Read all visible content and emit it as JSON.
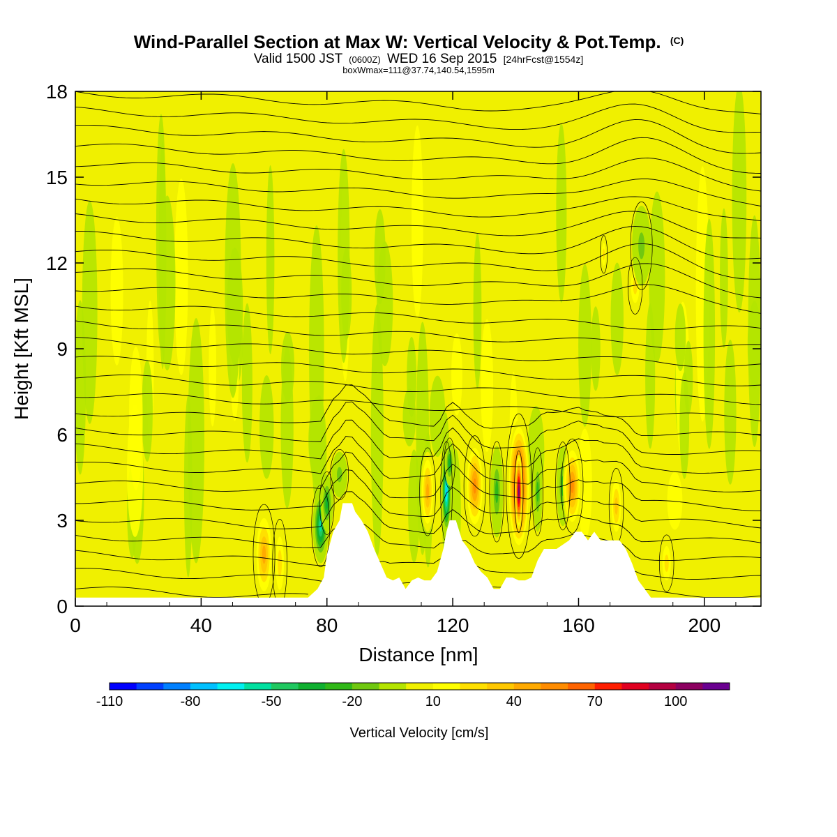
{
  "title": {
    "main": "Wind-Parallel Section at Max W: Vertical Velocity & Pot.Temp.",
    "main_mark": "(C)",
    "valid_prefix": "Valid 1500 JST",
    "valid_utc": "(0600Z)",
    "valid_date": "WED 16 Sep 2015",
    "valid_fcst": "[24hrFcst@1554z]",
    "box": "boxWmax=111@37.74,140.54,1595m"
  },
  "chart_data": {
    "type": "heatmap",
    "xlabel": "Distance [nm]",
    "ylabel": "Height [Kft MSL]",
    "xlim": [
      0,
      218
    ],
    "ylim": [
      0,
      18
    ],
    "x_ticks": [
      "0",
      "40",
      "80",
      "120",
      "160",
      "200"
    ],
    "y_ticks": [
      "0",
      "3",
      "6",
      "9",
      "12",
      "15",
      "18"
    ],
    "colorbar": {
      "label": "Vertical Velocity [cm/s]",
      "tick_labels": [
        "-110",
        "-80",
        "-50",
        "-20",
        "10",
        "40",
        "70",
        "100"
      ],
      "colors": [
        "#0000ff",
        "#0040ff",
        "#0080ff",
        "#00c0ff",
        "#00f0f0",
        "#00e0a0",
        "#20c860",
        "#10b030",
        "#30b818",
        "#70c810",
        "#b4e400",
        "#f0f000",
        "#ffff00",
        "#ffe000",
        "#ffc800",
        "#ffaa00",
        "#ff8c00",
        "#ff6400",
        "#ff1e00",
        "#e00020",
        "#b40040",
        "#8c0060",
        "#6a0090"
      ]
    },
    "terrain_kft": [
      [
        0,
        0.3
      ],
      [
        62,
        0.3
      ],
      [
        70,
        0.3
      ],
      [
        74,
        0.3
      ],
      [
        77,
        0.6
      ],
      [
        79,
        1.0
      ],
      [
        80,
        1.8
      ],
      [
        82,
        2.6
      ],
      [
        84,
        3.0
      ],
      [
        85,
        3.6
      ],
      [
        88,
        3.6
      ],
      [
        89,
        3.3
      ],
      [
        91,
        3.0
      ],
      [
        93,
        2.6
      ],
      [
        95,
        2.0
      ],
      [
        97,
        1.5
      ],
      [
        99,
        1.0
      ],
      [
        101,
        0.9
      ],
      [
        103,
        1.0
      ],
      [
        105,
        0.6
      ],
      [
        107,
        0.9
      ],
      [
        109,
        1.0
      ],
      [
        111,
        0.9
      ],
      [
        113,
        0.9
      ],
      [
        115,
        1.2
      ],
      [
        117,
        2.0
      ],
      [
        118,
        2.6
      ],
      [
        119,
        3.0
      ],
      [
        121,
        3.0
      ],
      [
        123,
        2.3
      ],
      [
        125,
        2.0
      ],
      [
        127,
        1.5
      ],
      [
        129,
        1.2
      ],
      [
        131,
        1.0
      ],
      [
        133,
        0.6
      ],
      [
        135,
        0.6
      ],
      [
        137,
        1.0
      ],
      [
        139,
        1.0
      ],
      [
        141,
        0.9
      ],
      [
        143,
        0.9
      ],
      [
        145,
        1.0
      ],
      [
        147,
        1.6
      ],
      [
        149,
        2.0
      ],
      [
        153,
        2.0
      ],
      [
        157,
        2.3
      ],
      [
        159,
        2.6
      ],
      [
        161,
        2.6
      ],
      [
        163,
        2.3
      ],
      [
        165,
        2.6
      ],
      [
        167,
        2.3
      ],
      [
        173,
        2.3
      ],
      [
        175,
        2.0
      ],
      [
        177,
        1.5
      ],
      [
        179,
        0.9
      ],
      [
        181,
        0.6
      ],
      [
        183,
        0.3
      ],
      [
        218,
        0.3
      ]
    ],
    "velocity_cells": [
      {
        "x": 60,
        "y": 1.8,
        "rx": 3,
        "ry": 1.6,
        "w": 35
      },
      {
        "x": 65,
        "y": 1.5,
        "rx": 2,
        "ry": 1.4,
        "w": 20
      },
      {
        "x": 78,
        "y": 2.8,
        "rx": 2.5,
        "ry": 1.3,
        "w": -55
      },
      {
        "x": 80,
        "y": 3.6,
        "rx": 2,
        "ry": 1.0,
        "w": -35
      },
      {
        "x": 84,
        "y": 4.6,
        "rx": 2.5,
        "ry": 0.8,
        "w": -20
      },
      {
        "x": 112,
        "y": 4.0,
        "rx": 2.2,
        "ry": 1.4,
        "w": 40
      },
      {
        "x": 118,
        "y": 4.0,
        "rx": 1.6,
        "ry": 1.6,
        "w": -80
      },
      {
        "x": 119,
        "y": 5.0,
        "rx": 1.5,
        "ry": 0.8,
        "w": -40
      },
      {
        "x": 127,
        "y": 4.2,
        "rx": 3,
        "ry": 1.6,
        "w": 45
      },
      {
        "x": 134,
        "y": 4.0,
        "rx": 2,
        "ry": 1.6,
        "w": -30
      },
      {
        "x": 141,
        "y": 4.2,
        "rx": 3.5,
        "ry": 2.3,
        "w": 90
      },
      {
        "x": 141,
        "y": 4.0,
        "rx": 1.2,
        "ry": 1.3,
        "w": 111
      },
      {
        "x": 147,
        "y": 4.0,
        "rx": 1.5,
        "ry": 1.4,
        "w": -25
      },
      {
        "x": 155,
        "y": 4.2,
        "rx": 2,
        "ry": 1.4,
        "w": -30
      },
      {
        "x": 158,
        "y": 4.2,
        "rx": 3,
        "ry": 1.5,
        "w": 50
      },
      {
        "x": 172,
        "y": 3.5,
        "rx": 2,
        "ry": 1.2,
        "w": 30
      },
      {
        "x": 188,
        "y": 1.5,
        "rx": 2,
        "ry": 0.9,
        "w": 15
      },
      {
        "x": 178,
        "y": 11.2,
        "rx": 2,
        "ry": 0.9,
        "w": 20
      },
      {
        "x": 168,
        "y": 12.3,
        "rx": 1,
        "ry": 0.6,
        "w": 15
      },
      {
        "x": 180,
        "y": 12.6,
        "rx": 3,
        "ry": 1.4,
        "w": -20
      }
    ]
  }
}
